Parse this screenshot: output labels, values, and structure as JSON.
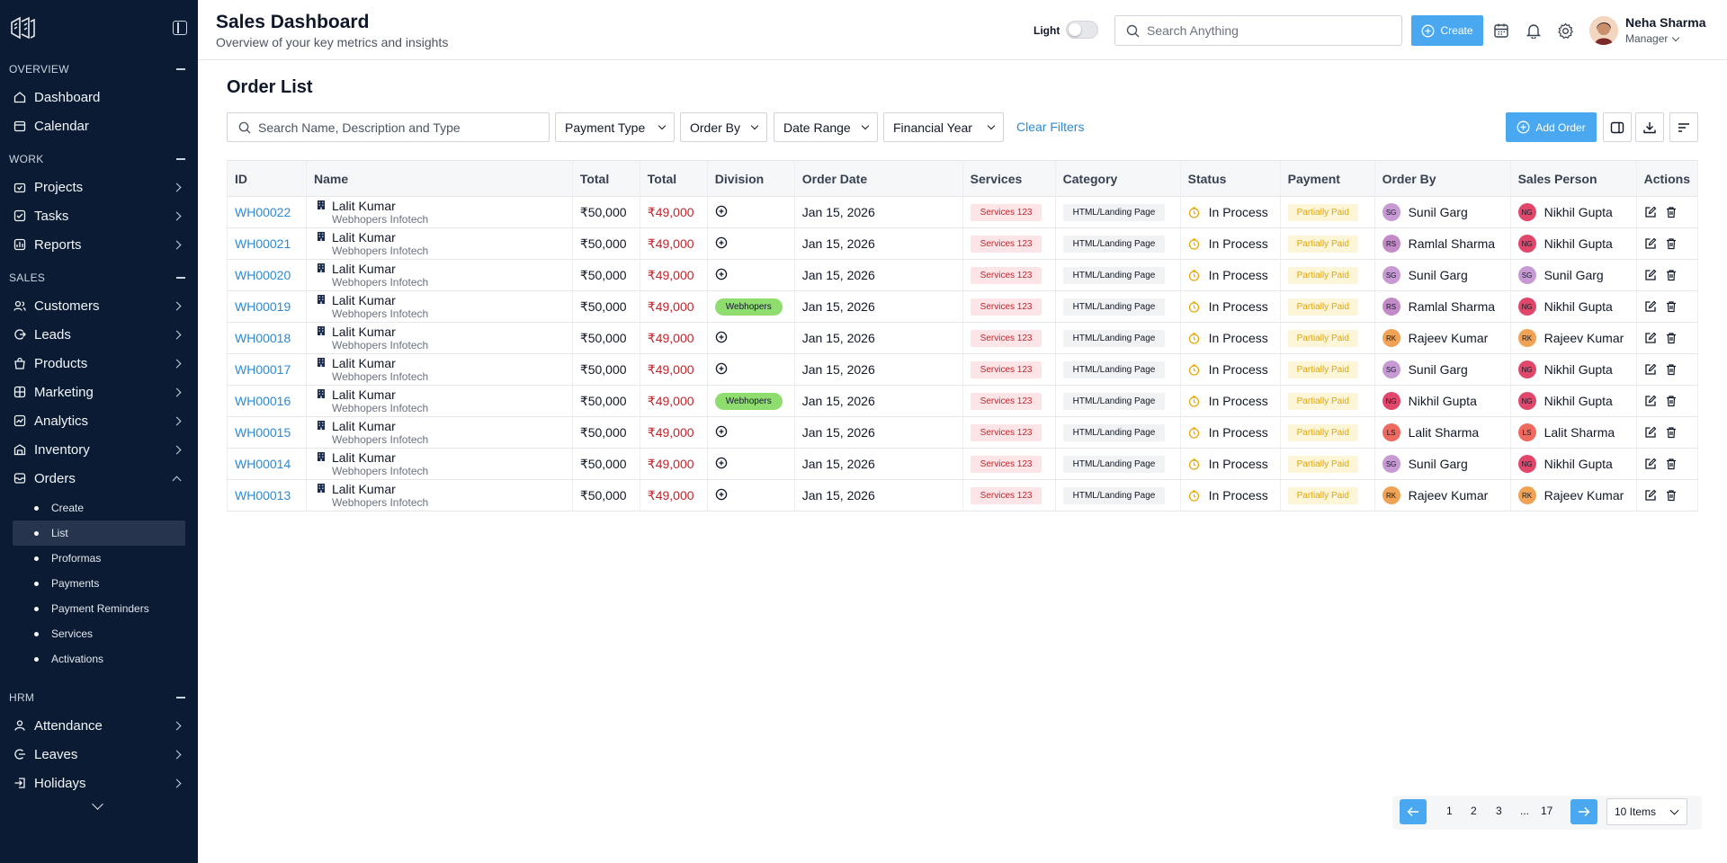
{
  "sidebar": {
    "sections": [
      {
        "title": "OVERVIEW"
      },
      {
        "title": "WORK"
      },
      {
        "title": "SALES"
      },
      {
        "title": "HRM"
      }
    ],
    "items": {
      "dashboard": "Dashboard",
      "calendar": "Calendar",
      "projects": "Projects",
      "tasks": "Tasks",
      "reports": "Reports",
      "customers": "Customers",
      "leads": "Leads",
      "products": "Products",
      "marketing": "Marketing",
      "analytics": "Analytics",
      "inventory": "Inventory",
      "orders": "Orders",
      "attendance": "Attendance",
      "leaves": "Leaves",
      "holidays": "Holidays"
    },
    "orders_sub": [
      "Create",
      "List",
      "Proformas",
      "Payments",
      "Payment Reminders",
      "Services",
      "Activations"
    ],
    "active_sub": "List"
  },
  "header": {
    "title": "Sales Dashboard",
    "subtitle": "Overview of your key metrics and insights",
    "theme_label": "Light",
    "search_placeholder": "Search Anything",
    "create_label": "Create",
    "user_name": "Neha Sharma",
    "user_role": "Manager"
  },
  "main": {
    "title": "Order List",
    "search_placeholder": "Search Name, Description and Type",
    "filters": [
      "Payment Type",
      "Order By",
      "Date Range",
      "Financial Year"
    ],
    "clear_filters": "Clear Filters",
    "add_order": "Add Order"
  },
  "table": {
    "columns": [
      "ID",
      "Name",
      "Total",
      "Total",
      "Division",
      "Order Date",
      "Services",
      "Category",
      "Status",
      "Payment",
      "Order By",
      "Sales Person",
      "Actions"
    ],
    "rows": [
      {
        "id": "WH00022",
        "name": "Lalit Kumar",
        "company": "Webhopers Infotech",
        "total1": "₹50,000",
        "total2": "₹49,000",
        "division": "",
        "date": "Jan 15, 2026",
        "services": "Services 123",
        "category": "HTML/Landing Page",
        "status": "In Process",
        "payment": "Partially Paid",
        "order_by": "Sunil Garg",
        "order_by_init": "SG",
        "order_by_color": "#c89ad3",
        "sales": "Nikhil Gupta",
        "sales_init": "NG",
        "sales_color": "#e0476a"
      },
      {
        "id": "WH00021",
        "name": "Lalit Kumar",
        "company": "Webhopers Infotech",
        "total1": "₹50,000",
        "total2": "₹49,000",
        "division": "",
        "date": "Jan 15, 2026",
        "services": "Services 123",
        "category": "HTML/Landing Page",
        "status": "In Process",
        "payment": "Partially Paid",
        "order_by": "Ramlal Sharma",
        "order_by_init": "RS",
        "order_by_color": "#c28ac6",
        "sales": "Nikhil Gupta",
        "sales_init": "NG",
        "sales_color": "#e0476a"
      },
      {
        "id": "WH00020",
        "name": "Lalit Kumar",
        "company": "Webhopers Infotech",
        "total1": "₹50,000",
        "total2": "₹49,000",
        "division": "",
        "date": "Jan 15, 2026",
        "services": "Services 123",
        "category": "HTML/Landing Page",
        "status": "In Process",
        "payment": "Partially Paid",
        "order_by": "Sunil Garg",
        "order_by_init": "SG",
        "order_by_color": "#c89ad3",
        "sales": "Sunil Garg",
        "sales_init": "SG",
        "sales_color": "#c89ad3"
      },
      {
        "id": "WH00019",
        "name": "Lalit Kumar",
        "company": "Webhopers Infotech",
        "total1": "₹50,000",
        "total2": "₹49,000",
        "division": "Webhopers",
        "date": "Jan 15, 2026",
        "services": "Services 123",
        "category": "HTML/Landing Page",
        "status": "In Process",
        "payment": "Partially Paid",
        "order_by": "Ramlal Sharma",
        "order_by_init": "RS",
        "order_by_color": "#c28ac6",
        "sales": "Nikhil Gupta",
        "sales_init": "NG",
        "sales_color": "#e0476a"
      },
      {
        "id": "WH00018",
        "name": "Lalit Kumar",
        "company": "Webhopers Infotech",
        "total1": "₹50,000",
        "total2": "₹49,000",
        "division": "",
        "date": "Jan 15, 2026",
        "services": "Services 123",
        "category": "HTML/Landing Page",
        "status": "In Process",
        "payment": "Partially Paid",
        "order_by": "Rajeev Kumar",
        "order_by_init": "RK",
        "order_by_color": "#f0a255",
        "sales": "Rajeev Kumar",
        "sales_init": "RK",
        "sales_color": "#f0a255"
      },
      {
        "id": "WH00017",
        "name": "Lalit Kumar",
        "company": "Webhopers Infotech",
        "total1": "₹50,000",
        "total2": "₹49,000",
        "division": "",
        "date": "Jan 15, 2026",
        "services": "Services 123",
        "category": "HTML/Landing Page",
        "status": "In Process",
        "payment": "Partially Paid",
        "order_by": "Sunil Garg",
        "order_by_init": "SG",
        "order_by_color": "#c89ad3",
        "sales": "Nikhil Gupta",
        "sales_init": "NG",
        "sales_color": "#e0476a"
      },
      {
        "id": "WH00016",
        "name": "Lalit Kumar",
        "company": "Webhopers Infotech",
        "total1": "₹50,000",
        "total2": "₹49,000",
        "division": "Webhopers",
        "date": "Jan 15, 2026",
        "services": "Services 123",
        "category": "HTML/Landing Page",
        "status": "In Process",
        "payment": "Partially Paid",
        "order_by": "Nikhil Gupta",
        "order_by_init": "NG",
        "order_by_color": "#e0476a",
        "sales": "Nikhil Gupta",
        "sales_init": "NG",
        "sales_color": "#e0476a"
      },
      {
        "id": "WH00015",
        "name": "Lalit Kumar",
        "company": "Webhopers Infotech",
        "total1": "₹50,000",
        "total2": "₹49,000",
        "division": "",
        "date": "Jan 15, 2026",
        "services": "Services 123",
        "category": "HTML/Landing Page",
        "status": "In Process",
        "payment": "Partially Paid",
        "order_by": "Lalit Sharma",
        "order_by_init": "LS",
        "order_by_color": "#ef6a5e",
        "sales": "Lalit Sharma",
        "sales_init": "LS",
        "sales_color": "#ef6a5e"
      },
      {
        "id": "WH00014",
        "name": "Lalit Kumar",
        "company": "Webhopers Infotech",
        "total1": "₹50,000",
        "total2": "₹49,000",
        "division": "",
        "date": "Jan 15, 2026",
        "services": "Services 123",
        "category": "HTML/Landing Page",
        "status": "In Process",
        "payment": "Partially Paid",
        "order_by": "Sunil Garg",
        "order_by_init": "SG",
        "order_by_color": "#c89ad3",
        "sales": "Nikhil Gupta",
        "sales_init": "NG",
        "sales_color": "#e0476a"
      },
      {
        "id": "WH00013",
        "name": "Lalit Kumar",
        "company": "Webhopers Infotech",
        "total1": "₹50,000",
        "total2": "₹49,000",
        "division": "",
        "date": "Jan 15, 2026",
        "services": "Services 123",
        "category": "HTML/Landing Page",
        "status": "In Process",
        "payment": "Partially Paid",
        "order_by": "Rajeev Kumar",
        "order_by_init": "RK",
        "order_by_color": "#f0a255",
        "sales": "Rajeev Kumar",
        "sales_init": "RK",
        "sales_color": "#f0a255"
      }
    ]
  },
  "pagination": {
    "pages": [
      "1",
      "2",
      "3",
      "...",
      "17"
    ],
    "page_size": "10 Items"
  },
  "colors": {
    "sidebar_bg": "#0b1b33",
    "accent": "#4aa8f0",
    "link": "#2b8ad6",
    "negative": "#c0262d"
  },
  "icons": [
    "logo-icon",
    "panel-toggle-icon",
    "search-icon",
    "plus-circle-icon",
    "calendar-icon",
    "bell-icon",
    "gear-icon",
    "columns-icon",
    "download-icon",
    "sort-icon",
    "edit-icon",
    "trash-icon",
    "clock-icon",
    "building-icon",
    "arrow-left-icon",
    "arrow-right-icon"
  ]
}
